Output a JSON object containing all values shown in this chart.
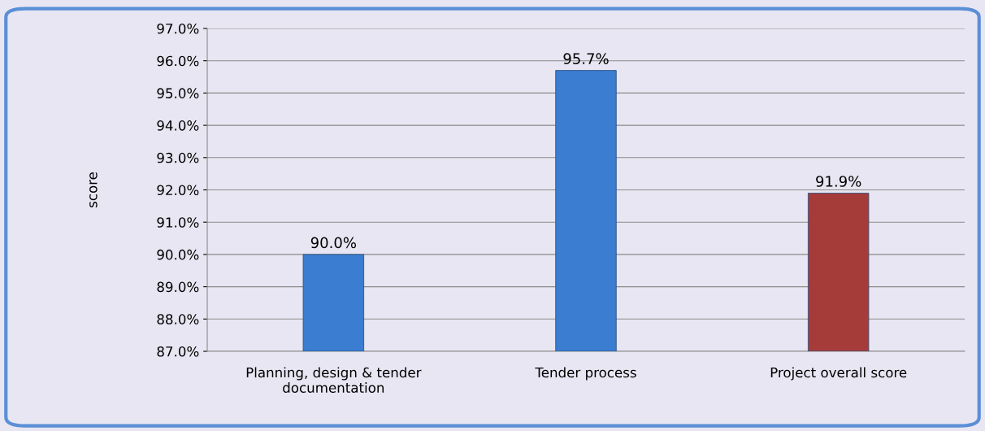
{
  "chart_data": {
    "type": "bar",
    "ylabel": "score",
    "categories": [
      "Planning, design & tender\ndocumentation",
      "Tender process",
      "Project overall score"
    ],
    "values": [
      90.0,
      95.7,
      91.9
    ],
    "colors": [
      "#3b7dd0",
      "#3b7dd0",
      "#a63c3a"
    ],
    "value_labels": [
      "90.0%",
      "95.7%",
      "91.9%"
    ],
    "ylim": [
      87,
      97
    ],
    "yticks": [
      {
        "value": 87,
        "label": "87.0%"
      },
      {
        "value": 88,
        "label": "88.0%"
      },
      {
        "value": 89,
        "label": "89.0%"
      },
      {
        "value": 90,
        "label": "90.0%"
      },
      {
        "value": 91,
        "label": "91.0%"
      },
      {
        "value": 92,
        "label": "92.0%"
      },
      {
        "value": 93,
        "label": "93.0%"
      },
      {
        "value": 94,
        "label": "94.0%"
      },
      {
        "value": 95,
        "label": "95.0%"
      },
      {
        "value": 96,
        "label": "96.0%"
      },
      {
        "value": 97,
        "label": "97.0%"
      }
    ],
    "grid": "y"
  }
}
